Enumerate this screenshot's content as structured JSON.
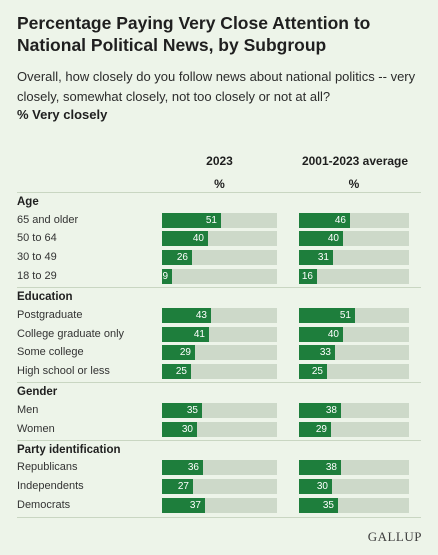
{
  "title": "Percentage Paying Very Close Attention to National Political News, by Subgroup",
  "subtitle": "Overall, how closely do you follow news about national politics -- very closely, somewhat closely, not too closely or not at all?",
  "note": "% Very closely",
  "columns": [
    {
      "label": "2023",
      "unit": "%"
    },
    {
      "label": "2001-2023 average",
      "unit": "%"
    }
  ],
  "logo": "GALLUP",
  "colors": {
    "bar": "#1e7e3c",
    "track": "#cdd9c9",
    "background": "#edf4e9"
  },
  "chart_data": {
    "type": "bar",
    "orientation": "horizontal",
    "xlim": [
      0,
      100
    ],
    "groups": [
      {
        "name": "Age",
        "categories": [
          "65 and older",
          "50 to 64",
          "30 to 49",
          "18 to 29"
        ]
      },
      {
        "name": "Education",
        "categories": [
          "Postgraduate",
          "College graduate only",
          "Some college",
          "High school or less"
        ]
      },
      {
        "name": "Gender",
        "categories": [
          "Men",
          "Women"
        ]
      },
      {
        "name": "Party identification",
        "categories": [
          "Republicans",
          "Independents",
          "Democrats"
        ]
      }
    ],
    "series": [
      {
        "name": "2023",
        "values": [
          51,
          40,
          26,
          9,
          43,
          41,
          29,
          25,
          35,
          30,
          36,
          27,
          37
        ]
      },
      {
        "name": "2001-2023 average",
        "values": [
          46,
          40,
          31,
          16,
          51,
          40,
          33,
          25,
          38,
          29,
          38,
          30,
          35
        ]
      }
    ]
  }
}
